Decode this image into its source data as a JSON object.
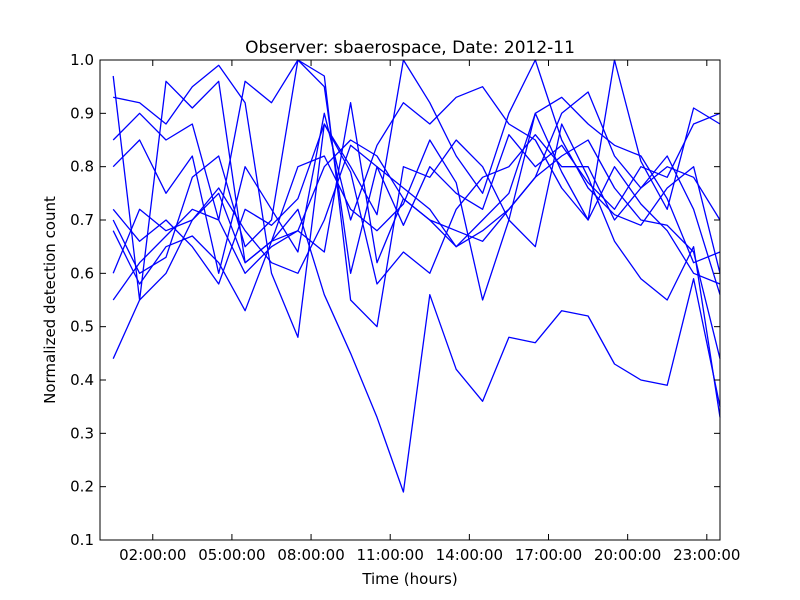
{
  "chart_data": {
    "type": "line",
    "title": "Observer: sbaerospace, Date: 2012-11",
    "xlabel": "Time (hours)",
    "ylabel": "Normalized detection count",
    "xlim": [
      0,
      23.5
    ],
    "ylim": [
      0.1,
      1.0
    ],
    "grid": false,
    "legend": "none",
    "line_color": "#0000ff",
    "x_ticks": [
      {
        "value": 2,
        "label": "02:00:00"
      },
      {
        "value": 5,
        "label": "05:00:00"
      },
      {
        "value": 8,
        "label": "08:00:00"
      },
      {
        "value": 11,
        "label": "11:00:00"
      },
      {
        "value": 14,
        "label": "14:00:00"
      },
      {
        "value": 17,
        "label": "17:00:00"
      },
      {
        "value": 20,
        "label": "20:00:00"
      },
      {
        "value": 23,
        "label": "23:00:00"
      }
    ],
    "y_ticks": [
      {
        "value": 0.1,
        "label": "0.1"
      },
      {
        "value": 0.2,
        "label": "0.2"
      },
      {
        "value": 0.3,
        "label": "0.3"
      },
      {
        "value": 0.4,
        "label": "0.4"
      },
      {
        "value": 0.5,
        "label": "0.5"
      },
      {
        "value": 0.6,
        "label": "0.6"
      },
      {
        "value": 0.7,
        "label": "0.7"
      },
      {
        "value": 0.8,
        "label": "0.8"
      },
      {
        "value": 0.9,
        "label": "0.9"
      },
      {
        "value": 1.0,
        "label": "1.0"
      }
    ],
    "x": [
      0.5,
      1.5,
      2.5,
      3.5,
      4.5,
      5.5,
      6.5,
      7.5,
      8.5,
      9.5,
      10.5,
      11.5,
      12.5,
      13.5,
      14.5,
      15.5,
      16.5,
      17.5,
      18.5,
      19.5,
      20.5,
      21.5,
      22.5,
      23.5
    ],
    "series": [
      {
        "values": [
          0.44,
          0.55,
          0.6,
          0.7,
          0.75,
          0.62,
          0.66,
          0.72,
          0.56,
          0.45,
          0.33,
          0.19,
          0.56,
          0.42,
          0.36,
          0.48,
          0.47,
          0.53,
          0.52,
          0.43,
          0.4,
          0.39,
          0.59,
          0.35
        ]
      },
      {
        "values": [
          0.55,
          0.62,
          0.67,
          0.72,
          0.7,
          0.6,
          0.65,
          0.68,
          0.8,
          0.85,
          0.82,
          0.74,
          0.7,
          0.68,
          0.66,
          0.72,
          0.78,
          0.82,
          0.85,
          0.76,
          0.7,
          0.69,
          0.64,
          0.44
        ]
      },
      {
        "values": [
          0.7,
          0.6,
          0.63,
          0.78,
          0.82,
          0.65,
          0.7,
          1.0,
          0.97,
          0.55,
          0.5,
          0.8,
          0.78,
          0.85,
          0.8,
          0.7,
          0.65,
          0.88,
          0.78,
          0.66,
          0.59,
          0.55,
          0.65,
          0.33
        ]
      },
      {
        "values": [
          0.85,
          0.9,
          0.85,
          0.88,
          0.7,
          0.96,
          0.92,
          1.0,
          0.95,
          0.6,
          0.8,
          0.76,
          0.72,
          0.65,
          0.7,
          0.75,
          0.9,
          0.93,
          0.88,
          0.84,
          0.82,
          0.74,
          0.62,
          0.64
        ]
      },
      {
        "values": [
          0.93,
          0.92,
          0.88,
          0.95,
          0.99,
          0.92,
          0.6,
          0.48,
          0.88,
          0.8,
          0.71,
          1.0,
          0.92,
          0.82,
          0.75,
          0.9,
          1.0,
          0.85,
          0.76,
          0.71,
          0.69,
          0.76,
          0.8,
          0.6
        ]
      },
      {
        "values": [
          0.68,
          0.58,
          0.65,
          0.67,
          0.62,
          0.53,
          0.66,
          0.8,
          0.82,
          0.72,
          0.68,
          0.73,
          0.85,
          0.77,
          0.55,
          0.7,
          0.9,
          0.79,
          0.7,
          1.0,
          0.81,
          0.72,
          0.91,
          0.88
        ]
      },
      {
        "values": [
          0.97,
          0.55,
          0.96,
          0.91,
          0.96,
          0.62,
          0.66,
          0.68,
          0.64,
          0.92,
          0.62,
          0.74,
          0.7,
          0.65,
          0.68,
          0.72,
          0.78,
          0.9,
          0.94,
          0.82,
          0.76,
          0.8,
          0.78,
          0.7
        ]
      },
      {
        "values": [
          0.6,
          0.72,
          0.68,
          0.7,
          0.76,
          0.68,
          0.62,
          0.6,
          0.7,
          0.84,
          0.8,
          0.69,
          0.8,
          0.75,
          0.72,
          0.86,
          0.8,
          0.84,
          0.77,
          0.72,
          0.8,
          0.78,
          0.88,
          0.9
        ]
      },
      {
        "values": [
          0.72,
          0.66,
          0.7,
          0.65,
          0.58,
          0.72,
          0.69,
          0.74,
          0.88,
          0.79,
          0.58,
          0.64,
          0.6,
          0.72,
          0.78,
          0.8,
          0.86,
          0.8,
          0.8,
          0.7,
          0.76,
          0.82,
          0.72,
          0.56
        ]
      },
      {
        "values": [
          0.8,
          0.85,
          0.75,
          0.82,
          0.6,
          0.8,
          0.72,
          0.64,
          0.9,
          0.7,
          0.84,
          0.92,
          0.88,
          0.93,
          0.95,
          0.88,
          0.85,
          0.76,
          0.7,
          0.8,
          0.73,
          0.68,
          0.6,
          0.58
        ]
      }
    ]
  }
}
